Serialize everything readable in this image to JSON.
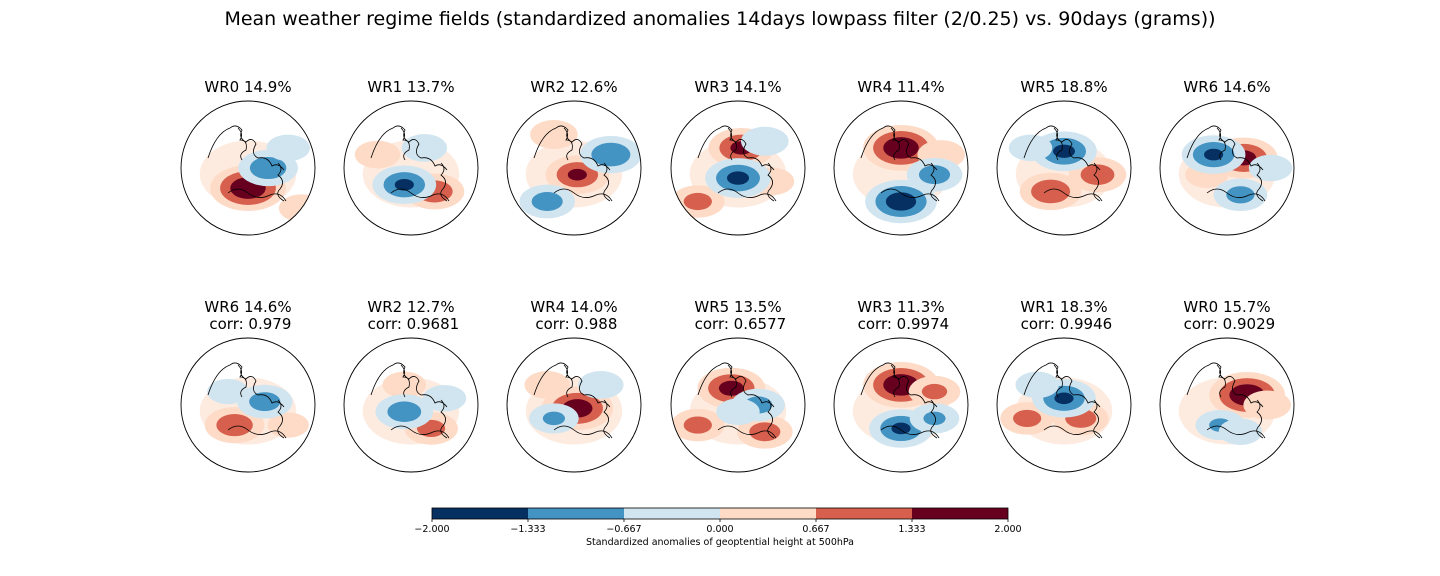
{
  "title": "Mean weather regime fields (standardized anomalies 14days lowpass filter (2/0.25) vs. 90days (grams))",
  "top_row": [
    {
      "label": "WR0 14.9%",
      "pattern": {
        "pos": [
          [
            0.0,
            -0.3,
            2.0
          ],
          [
            0.8,
            -0.6,
            0.5
          ]
        ],
        "neg": [
          [
            0.3,
            0.0,
            -1.2
          ],
          [
            0.6,
            0.3,
            -0.4
          ]
        ]
      }
    },
    {
      "label": "WR1 13.7%",
      "pattern": {
        "pos": [
          [
            0.35,
            -0.35,
            1.2
          ],
          [
            -0.5,
            0.2,
            0.5
          ]
        ],
        "neg": [
          [
            -0.1,
            -0.25,
            -1.4
          ],
          [
            0.2,
            0.3,
            -0.5
          ]
        ]
      }
    },
    {
      "label": "WR2 12.6%",
      "pattern": {
        "pos": [
          [
            0.05,
            -0.1,
            1.4
          ],
          [
            -0.3,
            0.5,
            0.6
          ]
        ],
        "neg": [
          [
            0.55,
            0.2,
            -1.3
          ],
          [
            -0.4,
            -0.5,
            -1.0
          ]
        ]
      }
    },
    {
      "label": "WR3 14.1%",
      "pattern": {
        "pos": [
          [
            0.05,
            0.3,
            1.5
          ],
          [
            -0.6,
            -0.5,
            0.9
          ],
          [
            0.5,
            -0.2,
            0.5
          ]
        ],
        "neg": [
          [
            0.0,
            -0.15,
            -1.5
          ],
          [
            0.4,
            0.4,
            -0.6
          ]
        ]
      }
    },
    {
      "label": "WR4 11.4%",
      "pattern": {
        "pos": [
          [
            0.0,
            0.3,
            2.0
          ],
          [
            0.6,
            0.2,
            0.6
          ]
        ],
        "neg": [
          [
            0.0,
            -0.5,
            -1.8
          ],
          [
            0.5,
            -0.1,
            -1.0
          ]
        ]
      }
    },
    {
      "label": "WR5 18.8%",
      "pattern": {
        "pos": [
          [
            -0.2,
            -0.35,
            1.3
          ],
          [
            0.5,
            -0.1,
            1.1
          ]
        ],
        "neg": [
          [
            0.0,
            0.25,
            -1.5
          ],
          [
            -0.5,
            0.3,
            -0.4
          ]
        ]
      }
    },
    {
      "label": "WR6 14.6%",
      "pattern": {
        "pos": [
          [
            0.25,
            0.15,
            1.6
          ],
          [
            -0.3,
            -0.1,
            0.4
          ]
        ],
        "neg": [
          [
            -0.2,
            0.2,
            -1.4
          ],
          [
            0.2,
            -0.4,
            -0.9
          ],
          [
            0.65,
            0.0,
            -0.4
          ]
        ]
      }
    }
  ],
  "bottom_row": [
    {
      "label": "WR6 14.6%",
      "corr_label": " corr: 0.979",
      "pattern": {
        "pos": [
          [
            -0.2,
            -0.3,
            1.2
          ],
          [
            0.6,
            -0.3,
            0.3
          ]
        ],
        "neg": [
          [
            0.25,
            0.05,
            -1.0
          ],
          [
            -0.3,
            0.2,
            -0.3
          ]
        ]
      }
    },
    {
      "label": "WR2 12.7%",
      "corr_label": " corr: 0.9681",
      "pattern": {
        "pos": [
          [
            0.3,
            -0.35,
            0.9
          ],
          [
            -0.1,
            0.3,
            0.4
          ]
        ],
        "neg": [
          [
            -0.1,
            -0.1,
            -1.1
          ],
          [
            0.5,
            0.1,
            -0.4
          ]
        ]
      }
    },
    {
      "label": "WR4 14.0%",
      "corr_label": " corr: 0.988",
      "pattern": {
        "pos": [
          [
            0.05,
            -0.05,
            1.8
          ],
          [
            -0.4,
            0.3,
            0.5
          ]
        ],
        "neg": [
          [
            -0.3,
            -0.2,
            -0.7
          ],
          [
            0.4,
            0.3,
            -0.5
          ]
        ]
      }
    },
    {
      "label": "WR5 13.5%",
      "corr_label": " corr: 0.6577",
      "pattern": {
        "pos": [
          [
            -0.1,
            0.25,
            1.6
          ],
          [
            0.4,
            -0.4,
            1.0
          ],
          [
            -0.6,
            -0.3,
            0.9
          ]
        ],
        "neg": [
          [
            0.3,
            0.0,
            -0.9
          ],
          [
            0.0,
            -0.1,
            -0.4
          ]
        ]
      }
    },
    {
      "label": "WR3 11.3%",
      "corr_label": " corr: 0.9974",
      "pattern": {
        "pos": [
          [
            0.0,
            0.3,
            2.0
          ],
          [
            0.5,
            0.2,
            0.8
          ]
        ],
        "neg": [
          [
            0.0,
            -0.35,
            -1.4
          ],
          [
            0.5,
            -0.2,
            -0.7
          ]
        ]
      }
    },
    {
      "label": "WR1 18.3%",
      "corr_label": " corr: 0.9946",
      "pattern": {
        "pos": [
          [
            0.25,
            -0.2,
            1.0
          ],
          [
            -0.55,
            -0.2,
            0.9
          ]
        ],
        "neg": [
          [
            0.0,
            0.1,
            -1.4
          ],
          [
            -0.4,
            0.3,
            -0.4
          ]
        ]
      }
    },
    {
      "label": "WR0 15.7%",
      "corr_label": " corr: 0.9029",
      "pattern": {
        "pos": [
          [
            0.3,
            0.15,
            2.0
          ],
          [
            0.6,
            0.0,
            0.6
          ]
        ],
        "neg": [
          [
            -0.1,
            -0.3,
            -0.7
          ],
          [
            0.2,
            -0.4,
            -0.4
          ]
        ]
      }
    }
  ],
  "colorbar": {
    "ticks": [
      "−2.000",
      "−1.333",
      "−0.667",
      "0.000",
      "0.667",
      "1.333",
      "2.000"
    ],
    "bounds": [
      -2.0,
      -1.333,
      -0.667,
      0.0,
      0.667,
      1.333,
      2.0
    ],
    "colors": [
      "#053061",
      "#4393c3",
      "#d1e5f0",
      "#fddbc7",
      "#d6604d",
      "#67001f"
    ],
    "label": "Standardized anomalies of geoptential height at 500hPa"
  }
}
